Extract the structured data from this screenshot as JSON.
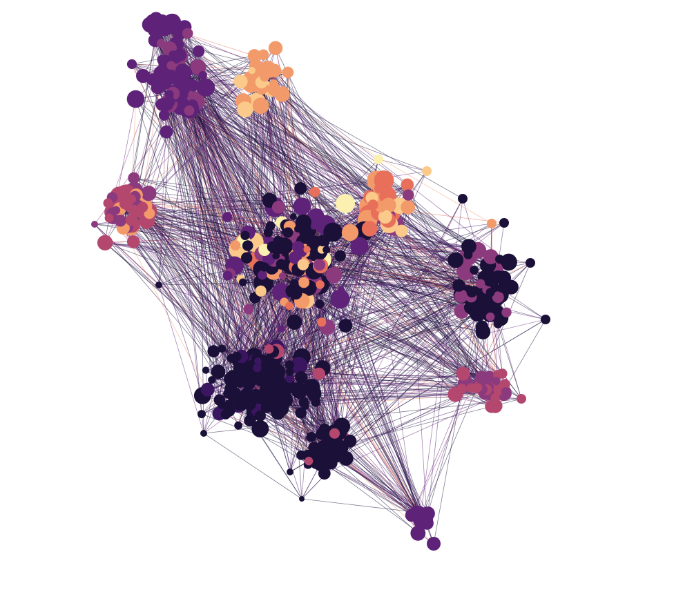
{
  "diagram": {
    "type": "network-graph",
    "background": "#ffffff",
    "palette": {
      "darkest": "#1a1038",
      "dark-purple": "#3b1660",
      "purple": "#5e2378",
      "magenta": "#8c3a7e",
      "rose": "#b4476e",
      "coral": "#e8705a",
      "orange": "#f39a6a",
      "peach": "#fbc98a",
      "cream": "#fcf0b0"
    },
    "communities": [
      {
        "id": "top-left-purple",
        "color": "#5e2378"
      },
      {
        "id": "top-orange",
        "color": "#f39a6a"
      },
      {
        "id": "left-rose",
        "color": "#b4476e"
      },
      {
        "id": "center-mixed",
        "color": "#1a1038"
      },
      {
        "id": "right-magenta",
        "color": "#8c3a7e"
      },
      {
        "id": "bottom-dark",
        "color": "#1a1038"
      },
      {
        "id": "bottom-tail-purple",
        "color": "#5e2378"
      }
    ]
  }
}
